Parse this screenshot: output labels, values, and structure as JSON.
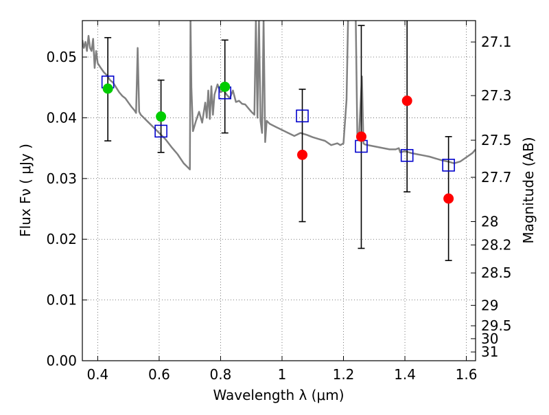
{
  "chart_data": {
    "type": "scatter",
    "xlabel": "Wavelength  λ (μm)",
    "ylabel": "Flux  Fν  ( μJy )",
    "ylabel_right": "Magnitude (AB)",
    "xlim": [
      0.35,
      1.63
    ],
    "ylim": [
      0.0,
      0.056
    ],
    "grid": true,
    "grid_style": "dotted",
    "x_ticks": [
      0.4,
      0.6,
      0.8,
      1.0,
      1.2,
      1.4,
      1.6
    ],
    "x_tick_labels": [
      "0.4",
      "0.6",
      "0.8",
      "1",
      "1.2",
      "1.4",
      "1.6"
    ],
    "y_ticks": [
      0.0,
      0.01,
      0.02,
      0.03,
      0.04,
      0.05
    ],
    "y_tick_labels": [
      "0.00",
      "0.01",
      "0.02",
      "0.03",
      "0.04",
      "0.05"
    ],
    "right_axis_scale": "AB magnitude: m = 23.9 − 2.5·log10(Fν / μJy)",
    "right_tick_labels": [
      "27.1",
      "27.3",
      "27.5",
      "27.7",
      "28",
      "28.2",
      "28.5",
      "29",
      "29.5",
      "30",
      "31"
    ],
    "colors": {
      "spectrum": "#808080",
      "green_points": "#00cc00",
      "red_points": "#ff0000",
      "model_squares": "#0000cc",
      "error_bars": "#000000"
    },
    "spectrum": [
      [
        0.35,
        0.0528
      ],
      [
        0.355,
        0.0515
      ],
      [
        0.36,
        0.0525
      ],
      [
        0.365,
        0.051
      ],
      [
        0.37,
        0.0535
      ],
      [
        0.375,
        0.0515
      ],
      [
        0.38,
        0.051
      ],
      [
        0.385,
        0.053
      ],
      [
        0.39,
        0.0482
      ],
      [
        0.395,
        0.051
      ],
      [
        0.4,
        0.049
      ],
      [
        0.41,
        0.0482
      ],
      [
        0.42,
        0.0475
      ],
      [
        0.43,
        0.047
      ],
      [
        0.44,
        0.0462
      ],
      [
        0.45,
        0.0458
      ],
      [
        0.46,
        0.045
      ],
      [
        0.47,
        0.0442
      ],
      [
        0.48,
        0.0436
      ],
      [
        0.49,
        0.0432
      ],
      [
        0.5,
        0.0425
      ],
      [
        0.51,
        0.0418
      ],
      [
        0.52,
        0.0412
      ],
      [
        0.525,
        0.0408
      ],
      [
        0.53,
        0.0515
      ],
      [
        0.535,
        0.041
      ],
      [
        0.54,
        0.0405
      ],
      [
        0.56,
        0.0395
      ],
      [
        0.58,
        0.0385
      ],
      [
        0.6,
        0.0375
      ],
      [
        0.62,
        0.0365
      ],
      [
        0.64,
        0.0352
      ],
      [
        0.66,
        0.034
      ],
      [
        0.68,
        0.0325
      ],
      [
        0.69,
        0.032
      ],
      [
        0.7,
        0.0315
      ],
      [
        0.702,
        0.0562
      ],
      [
        0.705,
        0.045
      ],
      [
        0.71,
        0.0378
      ],
      [
        0.72,
        0.0395
      ],
      [
        0.73,
        0.041
      ],
      [
        0.74,
        0.0392
      ],
      [
        0.75,
        0.0425
      ],
      [
        0.755,
        0.04
      ],
      [
        0.76,
        0.0445
      ],
      [
        0.765,
        0.0398
      ],
      [
        0.77,
        0.0452
      ],
      [
        0.775,
        0.0405
      ],
      [
        0.78,
        0.0438
      ],
      [
        0.79,
        0.0455
      ],
      [
        0.8,
        0.0442
      ],
      [
        0.81,
        0.0445
      ],
      [
        0.82,
        0.0438
      ],
      [
        0.83,
        0.0432
      ],
      [
        0.84,
        0.0445
      ],
      [
        0.85,
        0.0426
      ],
      [
        0.86,
        0.0428
      ],
      [
        0.87,
        0.0423
      ],
      [
        0.88,
        0.0422
      ],
      [
        0.89,
        0.0416
      ],
      [
        0.9,
        0.041
      ],
      [
        0.91,
        0.0405
      ],
      [
        0.915,
        0.0562
      ],
      [
        0.92,
        0.04
      ],
      [
        0.925,
        0.0562
      ],
      [
        0.93,
        0.0395
      ],
      [
        0.935,
        0.0375
      ],
      [
        0.94,
        0.0562
      ],
      [
        0.945,
        0.036
      ],
      [
        0.95,
        0.0395
      ],
      [
        0.96,
        0.039
      ],
      [
        0.98,
        0.0385
      ],
      [
        1.0,
        0.038
      ],
      [
        1.02,
        0.0375
      ],
      [
        1.04,
        0.037
      ],
      [
        1.06,
        0.0375
      ],
      [
        1.08,
        0.0372
      ],
      [
        1.1,
        0.0368
      ],
      [
        1.12,
        0.0365
      ],
      [
        1.14,
        0.0362
      ],
      [
        1.16,
        0.0355
      ],
      [
        1.18,
        0.0358
      ],
      [
        1.19,
        0.0355
      ],
      [
        1.2,
        0.0358
      ],
      [
        1.21,
        0.043
      ],
      [
        1.215,
        0.0562
      ],
      [
        1.23,
        0.0562
      ],
      [
        1.24,
        0.0562
      ],
      [
        1.245,
        0.037
      ],
      [
        1.25,
        0.0365
      ],
      [
        1.26,
        0.0468
      ],
      [
        1.265,
        0.0358
      ],
      [
        1.27,
        0.0356
      ],
      [
        1.29,
        0.0354
      ],
      [
        1.31,
        0.0352
      ],
      [
        1.33,
        0.035
      ],
      [
        1.35,
        0.0348
      ],
      [
        1.37,
        0.0348
      ],
      [
        1.38,
        0.035
      ],
      [
        1.385,
        0.0343
      ],
      [
        1.4,
        0.0345
      ],
      [
        1.42,
        0.0342
      ],
      [
        1.44,
        0.034
      ],
      [
        1.46,
        0.0338
      ],
      [
        1.48,
        0.0336
      ],
      [
        1.5,
        0.0333
      ],
      [
        1.52,
        0.033
      ],
      [
        1.54,
        0.0328
      ],
      [
        1.56,
        0.0325
      ],
      [
        1.58,
        0.0328
      ],
      [
        1.6,
        0.0335
      ],
      [
        1.62,
        0.0342
      ],
      [
        1.63,
        0.0348
      ]
    ],
    "points": [
      {
        "x": 0.433,
        "y": 0.0448,
        "color": "green",
        "err_low": 0.0362,
        "err_high": 0.0532
      },
      {
        "x": 0.606,
        "y": 0.0402,
        "color": "green",
        "err_low": 0.0343,
        "err_high": 0.0462
      },
      {
        "x": 0.814,
        "y": 0.0451,
        "color": "green",
        "err_low": 0.0375,
        "err_high": 0.0528
      },
      {
        "x": 1.066,
        "y": 0.0339,
        "color": "red",
        "err_low": 0.0229,
        "err_high": 0.0447
      },
      {
        "x": 1.258,
        "y": 0.0369,
        "color": "red",
        "err_low": 0.0185,
        "err_high": 0.0552
      },
      {
        "x": 1.407,
        "y": 0.0428,
        "color": "red",
        "err_low": 0.0278,
        "err_high": 0.0562
      },
      {
        "x": 1.542,
        "y": 0.0267,
        "color": "red",
        "err_low": 0.0165,
        "err_high": 0.0369
      }
    ],
    "model_squares": [
      {
        "x": 0.433,
        "y": 0.0459
      },
      {
        "x": 0.606,
        "y": 0.0378
      },
      {
        "x": 0.814,
        "y": 0.0441
      },
      {
        "x": 1.066,
        "y": 0.0403
      },
      {
        "x": 1.258,
        "y": 0.0353
      },
      {
        "x": 1.407,
        "y": 0.0338
      },
      {
        "x": 1.542,
        "y": 0.0322
      }
    ]
  }
}
